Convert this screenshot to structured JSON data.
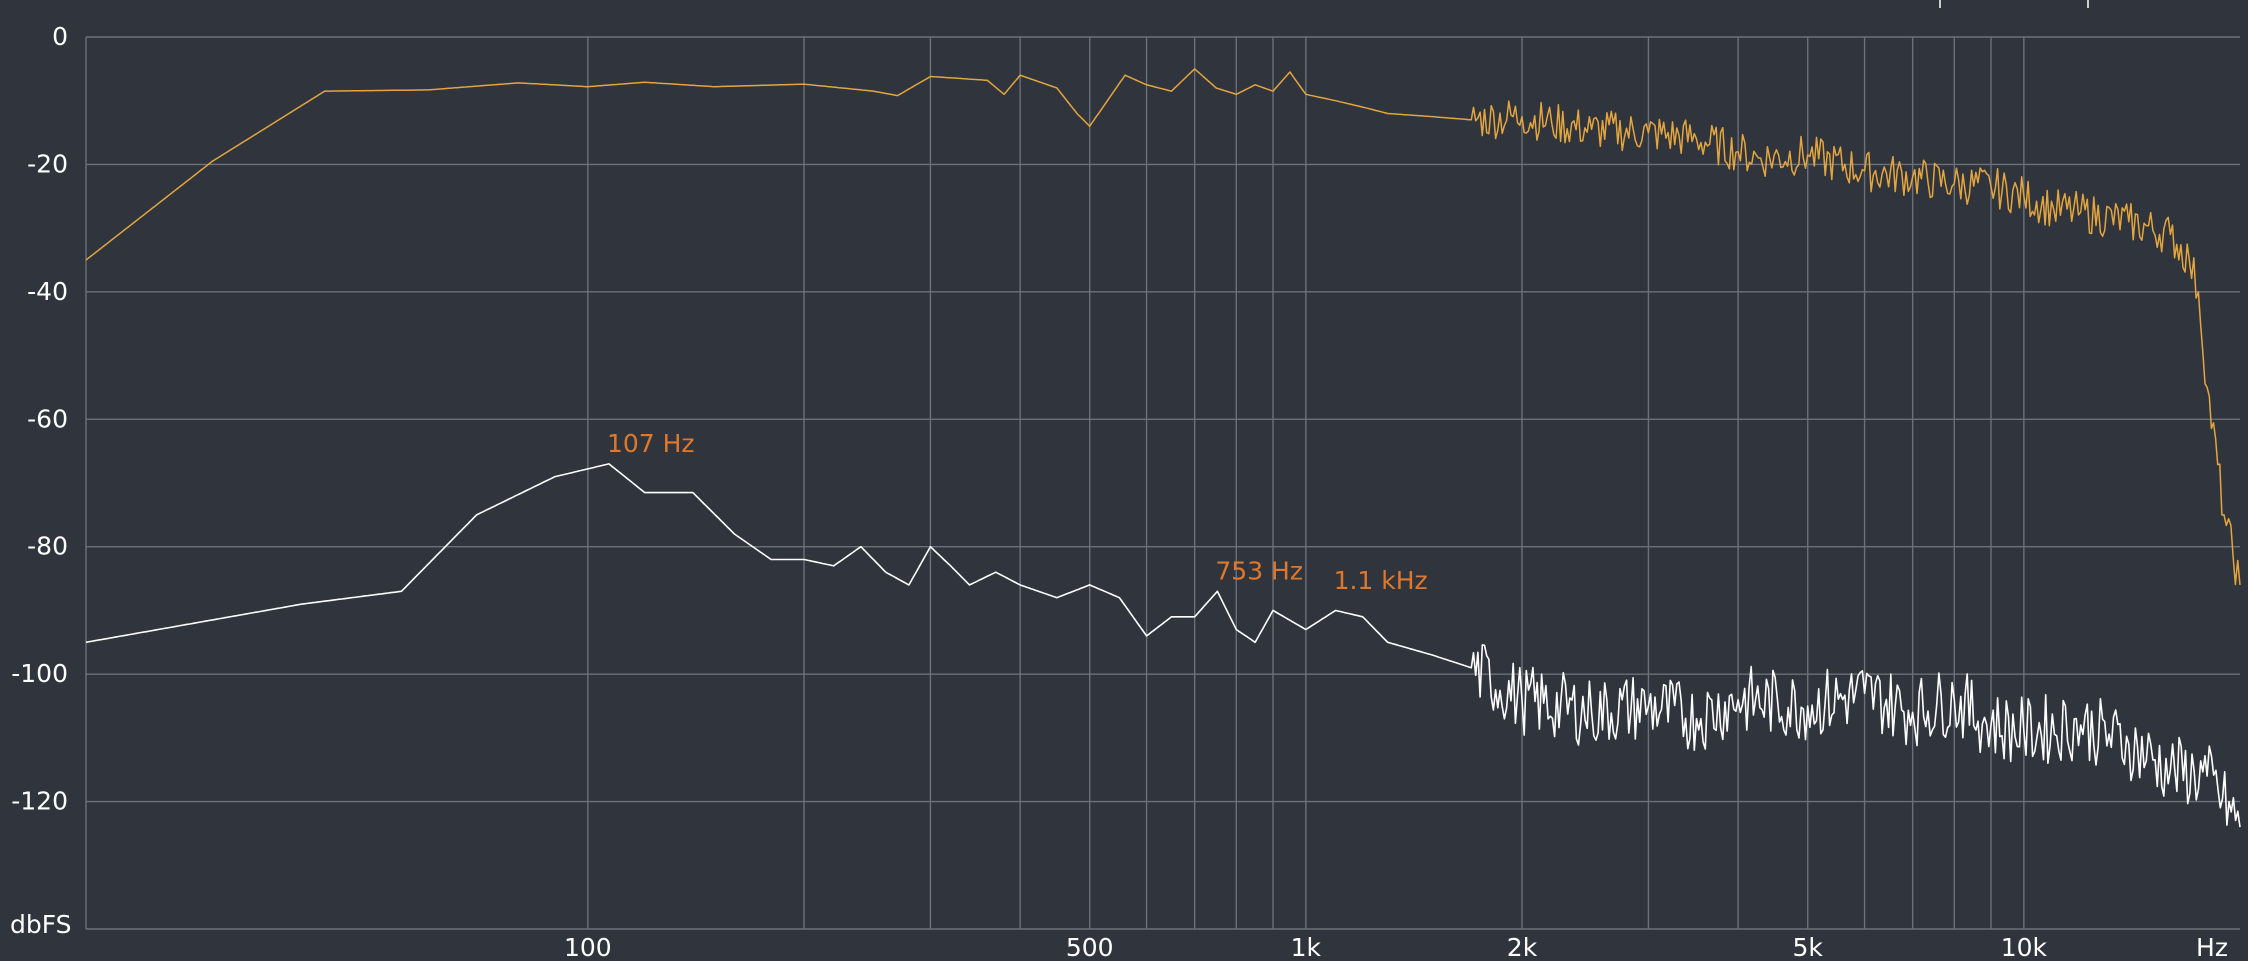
{
  "chart_data": {
    "type": "line",
    "title": "",
    "xlabel": "",
    "ylabel": "",
    "x_scale": "log",
    "xlim": [
      20,
      20000
    ],
    "ylim": [
      -140,
      0
    ],
    "grid": true,
    "x_tick_labels": [
      {
        "value": 100,
        "label": "100"
      },
      {
        "value": 500,
        "label": "500"
      },
      {
        "value": 1000,
        "label": "1k"
      },
      {
        "value": 2000,
        "label": "2k"
      },
      {
        "value": 5000,
        "label": "5k"
      },
      {
        "value": 10000,
        "label": "10k"
      }
    ],
    "x_unit_label": "Hz",
    "y_tick_labels": [
      {
        "value": 0,
        "label": "0"
      },
      {
        "value": -20,
        "label": "-20"
      },
      {
        "value": -40,
        "label": "-40"
      },
      {
        "value": -60,
        "label": "-60"
      },
      {
        "value": -80,
        "label": "-80"
      },
      {
        "value": -100,
        "label": "-100"
      },
      {
        "value": -120,
        "label": "-120"
      }
    ],
    "y_unit_label": "dbFS",
    "gridlines_x": [
      100,
      200,
      300,
      400,
      500,
      600,
      700,
      800,
      900,
      1000,
      2000,
      3000,
      4000,
      5000,
      6000,
      7000,
      8000,
      9000,
      10000
    ],
    "gridlines_y": [
      0,
      -20,
      -40,
      -60,
      -80,
      -100,
      -120,
      -140
    ],
    "colors": {
      "upper": "#e3a53f",
      "lower": "#ffffff",
      "peak_label": "#e0782b",
      "grid": "#6b7079",
      "background": "#30353d"
    },
    "series": [
      {
        "color": "#e3a53f",
        "x": [
          20,
          30,
          43,
          60,
          80,
          100,
          120,
          150,
          200,
          250,
          270,
          300,
          330,
          360,
          380,
          400,
          450,
          480,
          500,
          560,
          600,
          650,
          700,
          750,
          800,
          850,
          900,
          950,
          1000,
          1100,
          1200,
          1300,
          1500,
          1700,
          2000,
          2200,
          2500,
          3000,
          3500,
          4000,
          4300,
          5000,
          6000,
          7000,
          8000,
          9000,
          10000,
          11000,
          12000,
          14000,
          16000,
          17000,
          17500,
          18000,
          19000,
          20000
        ],
        "y": [
          -35,
          -19.5,
          -8.5,
          -8.3,
          -7.2,
          -7.8,
          -7.1,
          -7.8,
          -7.4,
          -8.5,
          -9.2,
          -6.2,
          -6.5,
          -6.8,
          -9,
          -6,
          -8,
          -12,
          -14,
          -6,
          -7.5,
          -8.5,
          -5,
          -8,
          -9,
          -7.5,
          -8.5,
          -5.5,
          -9,
          -10,
          -11,
          -12,
          -12.5,
          -13,
          -12.5,
          -13.5,
          -14.5,
          -15,
          -16,
          -18,
          -19,
          -18.5,
          -21,
          -22,
          -23,
          -23.5,
          -25,
          -27,
          -27.5,
          -29,
          -31,
          -35,
          -40,
          -55,
          -75,
          -86
        ]
      },
      {
        "color": "#ffffff",
        "x": [
          20,
          40,
          55,
          70,
          90,
          107,
          120,
          140,
          160,
          180,
          200,
          220,
          240,
          260,
          280,
          300,
          320,
          340,
          370,
          400,
          450,
          500,
          550,
          600,
          650,
          700,
          753,
          800,
          850,
          900,
          1000,
          1100,
          1200,
          1300,
          1500,
          1700,
          2000,
          2500,
          3000,
          3500,
          4000,
          5000,
          6000,
          7000,
          8000,
          9000,
          10000,
          12000,
          14000,
          16000,
          18000,
          20000
        ],
        "y": [
          -95,
          -89,
          -87,
          -75,
          -69,
          -67,
          -71.5,
          -71.5,
          -78,
          -82,
          -82,
          -83,
          -80,
          -84,
          -86,
          -80,
          -83,
          -86,
          -84,
          -86,
          -88,
          -86,
          -88,
          -94,
          -91,
          -91,
          -87,
          -93,
          -95,
          -90,
          -93,
          -90,
          -91,
          -95,
          -97,
          -99,
          -104,
          -106,
          -105,
          -107,
          -104,
          -105,
          -103,
          -106,
          -104,
          -108,
          -109,
          -108,
          -111,
          -115,
          -116,
          -124
        ]
      }
    ],
    "annotations": [
      {
        "x": 107,
        "y": -67,
        "label": "107 Hz"
      },
      {
        "x": 753,
        "y": -87,
        "label": "753 Hz"
      },
      {
        "x": 1100,
        "y": -88.5,
        "label": "1.1 kHz"
      }
    ]
  }
}
